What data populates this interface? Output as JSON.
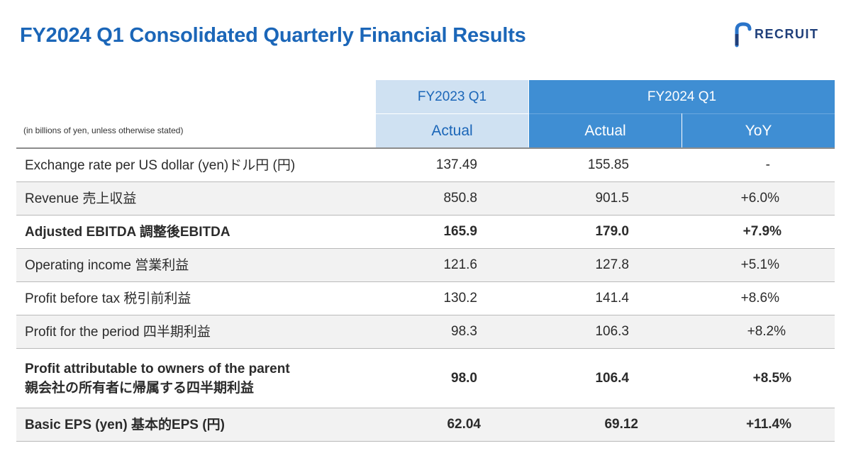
{
  "title": "FY2024 Q1 Consolidated Quarterly Financial Results",
  "logo": {
    "text": "RECRUIT",
    "icon": "recruit-logo-icon",
    "color": "#1f3f7a"
  },
  "colors": {
    "title": "#1b66b8",
    "header_light": "#cfe1f2",
    "header_dark": "#3f8ed3",
    "alt_row": "#f2f2f2"
  },
  "table": {
    "note": "(in billions of yen, unless otherwise stated)",
    "headers": {
      "fy2023": "FY2023 Q1",
      "fy2024": "FY2024 Q1",
      "actual_2023": "Actual",
      "actual_2024": "Actual",
      "yoy": "YoY"
    },
    "rows": [
      {
        "label": "Exchange rate per US dollar (yen)ドル円 (円)",
        "fy2023": "137.49",
        "fy2024": "155.85",
        "yoy": "-"
      },
      {
        "label": "Revenue 売上収益",
        "fy2023": "850.8",
        "fy2024": "901.5",
        "yoy": "+6.0%"
      },
      {
        "label": "Adjusted EBITDA 調整後EBITDA",
        "fy2023": "165.9",
        "fy2024": "179.0",
        "yoy": "+7.9%"
      },
      {
        "label": "Operating income 営業利益",
        "fy2023": "121.6",
        "fy2024": "127.8",
        "yoy": "+5.1%"
      },
      {
        "label": "Profit before tax 税引前利益",
        "fy2023": "130.2",
        "fy2024": "141.4",
        "yoy": "+8.6%"
      },
      {
        "label": "Profit for the period 四半期利益",
        "fy2023": "98.3",
        "fy2024": "106.3",
        "yoy": "+8.2%"
      },
      {
        "label_line1": "Profit attributable to owners of the parent",
        "label_line2": "親会社の所有者に帰属する四半期利益",
        "fy2023": "98.0",
        "fy2024": "106.4",
        "yoy": "+8.5%"
      },
      {
        "label": "Basic EPS (yen) 基本的EPS (円)",
        "fy2023": "62.04",
        "fy2024": "69.12",
        "yoy": "+11.4%"
      }
    ]
  }
}
